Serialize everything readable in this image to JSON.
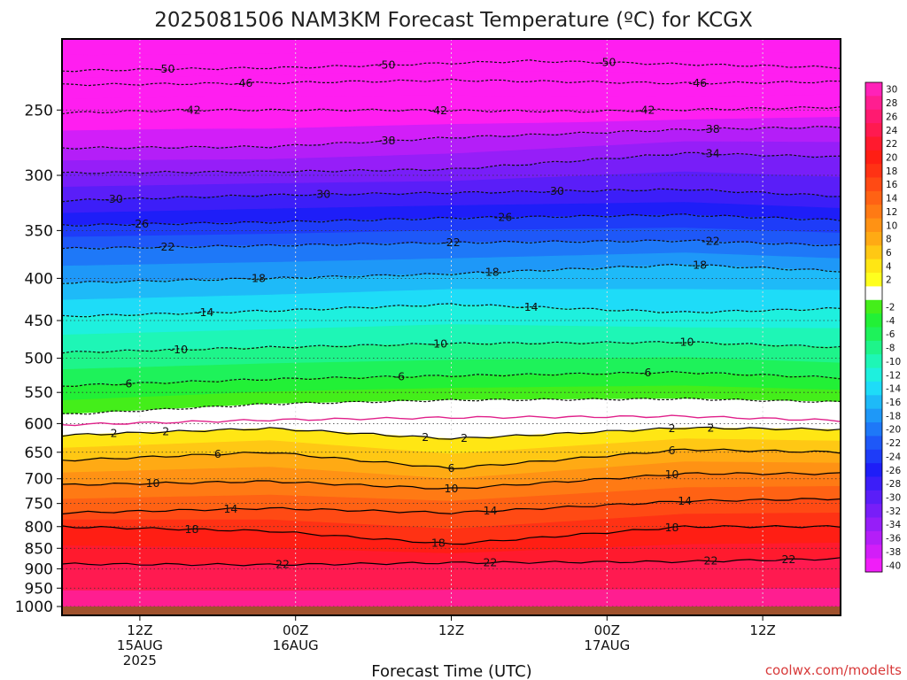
{
  "chart_data": {
    "type": "heatmap",
    "title": "2025081506 NAM3KM Forecast Temperature (ºC) for KCGX",
    "xlabel": "Forecast Time (UTC)",
    "ylabel": "",
    "credit": "coolwx.com/modelts",
    "y_axis": {
      "scale": "log-pressure",
      "reversed": true,
      "range_hPa": [
        1025,
        205
      ],
      "ticks": [
        250,
        300,
        350,
        400,
        450,
        500,
        550,
        600,
        650,
        700,
        750,
        800,
        850,
        900,
        950,
        1000
      ],
      "tick_labels": [
        "250",
        "300",
        "350",
        "400",
        "450",
        "500",
        "550",
        "600",
        "650",
        "700",
        "750",
        "800",
        "850",
        "900",
        "950",
        "1000"
      ]
    },
    "x_axis": {
      "range_forecast_hours": [
        0,
        60
      ],
      "ticks": [
        {
          "hour": 6,
          "lines": [
            "12Z",
            "15AUG",
            "2025"
          ]
        },
        {
          "hour": 18,
          "lines": [
            "00Z",
            "16AUG"
          ]
        },
        {
          "hour": 30,
          "lines": [
            "12Z"
          ]
        },
        {
          "hour": 42,
          "lines": [
            "00Z",
            "17AUG"
          ]
        },
        {
          "hour": 54,
          "lines": [
            "12Z"
          ]
        }
      ]
    },
    "grid": true,
    "ground_level_hPa": 1000,
    "colorbar": {
      "placement": "right",
      "bins": [
        {
          "label": "30",
          "color": "#ff22b8"
        },
        {
          "label": "28",
          "color": "#ff1e90"
        },
        {
          "label": "26",
          "color": "#ff1a70"
        },
        {
          "label": "24",
          "color": "#ff1a50"
        },
        {
          "label": "22",
          "color": "#ff1a2e"
        },
        {
          "label": "20",
          "color": "#ff1e14"
        },
        {
          "label": "18",
          "color": "#ff3214"
        },
        {
          "label": "16",
          "color": "#ff4a14"
        },
        {
          "label": "14",
          "color": "#ff6214"
        },
        {
          "label": "12",
          "color": "#ff7a14"
        },
        {
          "label": "10",
          "color": "#ff9214"
        },
        {
          "label": "8",
          "color": "#ffaa14"
        },
        {
          "label": "6",
          "color": "#ffc814"
        },
        {
          "label": "4",
          "color": "#ffe614"
        },
        {
          "label": "2",
          "color": "#ffff1e"
        },
        {
          "label": "",
          "color": "#ffffff"
        },
        {
          "label": "-2",
          "color": "#44ee1a"
        },
        {
          "label": "-4",
          "color": "#22f036"
        },
        {
          "label": "-6",
          "color": "#1ef25a"
        },
        {
          "label": "-8",
          "color": "#1ef48a"
        },
        {
          "label": "-10",
          "color": "#1ef6b6"
        },
        {
          "label": "-12",
          "color": "#1ef0de"
        },
        {
          "label": "-14",
          "color": "#1edcf8"
        },
        {
          "label": "-16",
          "color": "#1ebaf8"
        },
        {
          "label": "-18",
          "color": "#1e98f8"
        },
        {
          "label": "-20",
          "color": "#1e78f8"
        },
        {
          "label": "-22",
          "color": "#1e58f8"
        },
        {
          "label": "-24",
          "color": "#1e3cf8"
        },
        {
          "label": "-26",
          "color": "#1e1ef8"
        },
        {
          "label": "-28",
          "color": "#3c1ef8"
        },
        {
          "label": "-30",
          "color": "#5a1ef8"
        },
        {
          "label": "-32",
          "color": "#781ef8"
        },
        {
          "label": "-34",
          "color": "#961ef8"
        },
        {
          "label": "-36",
          "color": "#b41ef8"
        },
        {
          "label": "-38",
          "color": "#d21ef8"
        },
        {
          "label": "-40",
          "color": "#f01ef8"
        }
      ]
    },
    "isotherms": [
      {
        "temp": -50,
        "style": "dashed",
        "pressure_by_hour": [
          [
            0,
            224
          ],
          [
            18,
            222
          ],
          [
            36,
            218
          ],
          [
            48,
            220
          ],
          [
            60,
            222
          ]
        ],
        "labels": [
          {
            "text": "-50",
            "hour": 8
          },
          {
            "text": "-50",
            "hour": 25
          },
          {
            "text": "-50",
            "hour": 42
          }
        ]
      },
      {
        "temp": -46,
        "style": "dashed",
        "pressure_by_hour": [
          [
            0,
            233
          ],
          [
            14,
            232
          ],
          [
            30,
            230
          ],
          [
            48,
            232
          ],
          [
            60,
            231
          ]
        ],
        "labels": [
          {
            "text": "-46",
            "hour": 14
          },
          {
            "text": "-46",
            "hour": 49
          }
        ]
      },
      {
        "temp": -42,
        "style": "dashed",
        "pressure_by_hour": [
          [
            0,
            252
          ],
          [
            10,
            250
          ],
          [
            24,
            250
          ],
          [
            40,
            251
          ],
          [
            60,
            248
          ]
        ],
        "labels": [
          {
            "text": "-42",
            "hour": 10
          },
          {
            "text": "-42",
            "hour": 29
          },
          {
            "text": "-42",
            "hour": 45
          }
        ]
      },
      {
        "temp": -38,
        "style": "dashed",
        "pressure_by_hour": [
          [
            0,
            278
          ],
          [
            16,
            277
          ],
          [
            30,
            270
          ],
          [
            48,
            264
          ],
          [
            60,
            262
          ]
        ],
        "labels": [
          {
            "text": "-38",
            "hour": 25
          },
          {
            "text": "-38",
            "hour": 50
          }
        ]
      },
      {
        "temp": -34,
        "style": "dashed",
        "pressure_by_hour": [
          [
            0,
            298
          ],
          [
            16,
            297
          ],
          [
            30,
            295
          ],
          [
            48,
            282
          ],
          [
            60,
            285
          ]
        ],
        "labels": [
          {
            "text": "-34",
            "hour": 50
          }
        ]
      },
      {
        "temp": -30,
        "style": "dashed",
        "pressure_by_hour": [
          [
            0,
            322
          ],
          [
            16,
            317
          ],
          [
            30,
            315
          ],
          [
            48,
            312
          ],
          [
            60,
            318
          ]
        ],
        "labels": [
          {
            "text": "-30",
            "hour": 4
          },
          {
            "text": "-30",
            "hour": 20
          },
          {
            "text": "-30",
            "hour": 38
          }
        ]
      },
      {
        "temp": -26,
        "style": "dashed",
        "pressure_by_hour": [
          [
            0,
            345
          ],
          [
            16,
            342
          ],
          [
            30,
            338
          ],
          [
            48,
            335
          ],
          [
            60,
            340
          ]
        ],
        "labels": [
          {
            "text": "-26",
            "hour": 6
          },
          {
            "text": "-26",
            "hour": 34
          }
        ]
      },
      {
        "temp": -22,
        "style": "dashed",
        "pressure_by_hour": [
          [
            0,
            368
          ],
          [
            16,
            365
          ],
          [
            30,
            362
          ],
          [
            48,
            360
          ],
          [
            60,
            365
          ]
        ],
        "labels": [
          {
            "text": "-22",
            "hour": 8
          },
          {
            "text": "-22",
            "hour": 30
          },
          {
            "text": "-22",
            "hour": 50
          }
        ]
      },
      {
        "temp": -18,
        "style": "dashed",
        "pressure_by_hour": [
          [
            0,
            405
          ],
          [
            16,
            400
          ],
          [
            30,
            395
          ],
          [
            48,
            385
          ],
          [
            60,
            392
          ]
        ],
        "labels": [
          {
            "text": "-18",
            "hour": 15
          },
          {
            "text": "-18",
            "hour": 33
          },
          {
            "text": "-18",
            "hour": 49
          }
        ]
      },
      {
        "temp": -14,
        "style": "dashed",
        "pressure_by_hour": [
          [
            0,
            445
          ],
          [
            16,
            438
          ],
          [
            30,
            430
          ],
          [
            48,
            440
          ],
          [
            60,
            435
          ]
        ],
        "labels": [
          {
            "text": "-14",
            "hour": 11
          },
          {
            "text": "-14",
            "hour": 36
          }
        ]
      },
      {
        "temp": -10,
        "style": "dashed",
        "pressure_by_hour": [
          [
            0,
            492
          ],
          [
            16,
            485
          ],
          [
            30,
            480
          ],
          [
            48,
            478
          ],
          [
            60,
            485
          ]
        ],
        "labels": [
          {
            "text": "-10",
            "hour": 9
          },
          {
            "text": "-10",
            "hour": 29
          },
          {
            "text": "-10",
            "hour": 48
          }
        ]
      },
      {
        "temp": -6,
        "style": "dashed",
        "pressure_by_hour": [
          [
            0,
            540
          ],
          [
            16,
            530
          ],
          [
            30,
            525
          ],
          [
            48,
            520
          ],
          [
            60,
            528
          ]
        ],
        "labels": [
          {
            "text": "-6",
            "hour": 5
          },
          {
            "text": "-6",
            "hour": 26
          },
          {
            "text": "-6",
            "hour": 45
          }
        ]
      },
      {
        "temp": -2,
        "style": "dashed",
        "pressure_by_hour": [
          [
            0,
            585
          ],
          [
            16,
            568
          ],
          [
            30,
            562
          ],
          [
            48,
            560
          ],
          [
            60,
            565
          ]
        ],
        "labels": []
      },
      {
        "temp": 0,
        "style": "magenta",
        "pressure_by_hour": [
          [
            0,
            602
          ],
          [
            16,
            594
          ],
          [
            30,
            590
          ],
          [
            48,
            588
          ],
          [
            60,
            595
          ]
        ],
        "labels": []
      },
      {
        "temp": 2,
        "style": "solid",
        "pressure_by_hour": [
          [
            0,
            620
          ],
          [
            16,
            608
          ],
          [
            30,
            626
          ],
          [
            48,
            607
          ],
          [
            60,
            610
          ]
        ],
        "labels": [
          {
            "text": "2",
            "hour": 4
          },
          {
            "text": "2",
            "hour": 8
          },
          {
            "text": "2",
            "hour": 28
          },
          {
            "text": "2",
            "hour": 31
          },
          {
            "text": "2",
            "hour": 47
          },
          {
            "text": "2",
            "hour": 50
          }
        ]
      },
      {
        "temp": 6,
        "style": "solid",
        "pressure_by_hour": [
          [
            0,
            665
          ],
          [
            16,
            650
          ],
          [
            30,
            680
          ],
          [
            48,
            645
          ],
          [
            60,
            650
          ]
        ],
        "labels": [
          {
            "text": "6",
            "hour": 12
          },
          {
            "text": "6",
            "hour": 30
          },
          {
            "text": "6",
            "hour": 47
          }
        ]
      },
      {
        "temp": 10,
        "style": "solid",
        "pressure_by_hour": [
          [
            0,
            712
          ],
          [
            16,
            705
          ],
          [
            30,
            720
          ],
          [
            48,
            690
          ],
          [
            60,
            690
          ]
        ],
        "labels": [
          {
            "text": "10",
            "hour": 7
          },
          {
            "text": "10",
            "hour": 30
          },
          {
            "text": "10",
            "hour": 47
          }
        ]
      },
      {
        "temp": 14,
        "style": "solid",
        "pressure_by_hour": [
          [
            0,
            770
          ],
          [
            16,
            760
          ],
          [
            30,
            770
          ],
          [
            48,
            745
          ],
          [
            60,
            740
          ]
        ],
        "labels": [
          {
            "text": "14",
            "hour": 13
          },
          {
            "text": "14",
            "hour": 33
          },
          {
            "text": "14",
            "hour": 48
          }
        ]
      },
      {
        "temp": 18,
        "style": "solid",
        "pressure_by_hour": [
          [
            0,
            800
          ],
          [
            16,
            810
          ],
          [
            30,
            840
          ],
          [
            48,
            800
          ],
          [
            60,
            800
          ]
        ],
        "labels": [
          {
            "text": "18",
            "hour": 10
          },
          {
            "text": "18",
            "hour": 29
          },
          {
            "text": "18",
            "hour": 47
          }
        ]
      },
      {
        "temp": 22,
        "style": "solid",
        "pressure_by_hour": [
          [
            0,
            888
          ],
          [
            16,
            890
          ],
          [
            30,
            885
          ],
          [
            48,
            882
          ],
          [
            60,
            875
          ]
        ],
        "labels": [
          {
            "text": "22",
            "hour": 17
          },
          {
            "text": "22",
            "hour": 33
          },
          {
            "text": "22",
            "hour": 50
          },
          {
            "text": "22",
            "hour": 56
          }
        ]
      }
    ]
  }
}
